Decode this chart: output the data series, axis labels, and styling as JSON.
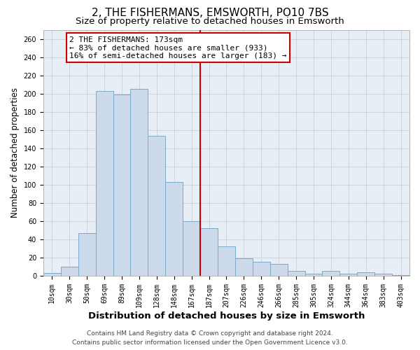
{
  "title": "2, THE FISHERMANS, EMSWORTH, PO10 7BS",
  "subtitle": "Size of property relative to detached houses in Emsworth",
  "xlabel": "Distribution of detached houses by size in Emsworth",
  "ylabel": "Number of detached properties",
  "bar_labels": [
    "10sqm",
    "30sqm",
    "50sqm",
    "69sqm",
    "89sqm",
    "109sqm",
    "128sqm",
    "148sqm",
    "167sqm",
    "187sqm",
    "207sqm",
    "226sqm",
    "246sqm",
    "266sqm",
    "285sqm",
    "305sqm",
    "324sqm",
    "344sqm",
    "364sqm",
    "383sqm",
    "403sqm"
  ],
  "bar_values": [
    3,
    10,
    47,
    203,
    199,
    205,
    154,
    103,
    60,
    52,
    32,
    19,
    15,
    13,
    5,
    2,
    5,
    2,
    4,
    2,
    1
  ],
  "bar_color": "#ccdaeb",
  "bar_edge_color": "#7aaac8",
  "vline_color": "#cc0000",
  "vline_x": 8.5,
  "annotation_text_line1": "2 THE FISHERMANS: 173sqm",
  "annotation_text_line2": "← 83% of detached houses are smaller (933)",
  "annotation_text_line3": "16% of semi-detached houses are larger (183) →",
  "annotation_box_edge": "#cc0000",
  "annotation_box_face": "#ffffff",
  "ylim": [
    0,
    270
  ],
  "yticks": [
    0,
    20,
    40,
    60,
    80,
    100,
    120,
    140,
    160,
    180,
    200,
    220,
    240,
    260
  ],
  "footer_line1": "Contains HM Land Registry data © Crown copyright and database right 2024.",
  "footer_line2": "Contains public sector information licensed under the Open Government Licence v3.0.",
  "bg_color": "#ffffff",
  "plot_bg_color": "#e8eef5",
  "grid_color": "#c8d0da",
  "title_fontsize": 11,
  "subtitle_fontsize": 9.5,
  "xlabel_fontsize": 9.5,
  "ylabel_fontsize": 8.5,
  "tick_fontsize": 7,
  "annotation_fontsize": 8,
  "footer_fontsize": 6.5
}
